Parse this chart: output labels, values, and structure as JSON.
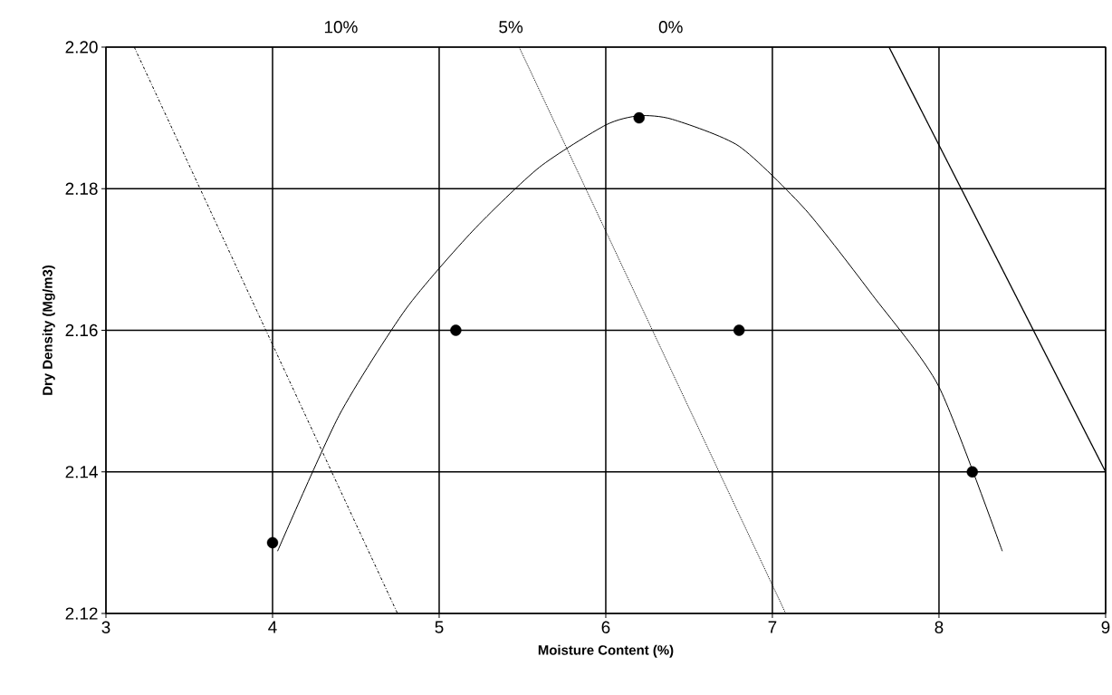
{
  "chart_data": {
    "type": "scatter",
    "xlabel": "Moisture Content (%)",
    "ylabel": "Dry Density (Mg/m3)",
    "xlim": [
      3,
      9
    ],
    "ylim": [
      2.12,
      2.2
    ],
    "xticks": [
      3,
      4,
      5,
      6,
      7,
      8,
      9
    ],
    "yticks": [
      {
        "value": 2.12,
        "label": "2.12"
      },
      {
        "value": 2.14,
        "label": "2.14"
      },
      {
        "value": 2.16,
        "label": "2.16"
      },
      {
        "value": 2.18,
        "label": "2.18"
      },
      {
        "value": 2.2,
        "label": "2.20"
      }
    ],
    "grid": true,
    "annotations": [
      "10%",
      "5%",
      "0%"
    ],
    "series": [
      {
        "color": "#000000",
        "marker": "circle",
        "x": [
          4,
          5.1,
          6.2,
          6.8,
          8.2
        ],
        "values": [
          2.13,
          2.16,
          2.19,
          2.16,
          2.14
        ]
      },
      {
        "type": "line",
        "color": "#000000",
        "marker": "none",
        "line_style": "solid",
        "x": [
          4.03,
          4.4,
          4.8,
          5.2,
          5.6,
          6.0,
          6.2,
          6.4,
          6.8,
          7.2,
          7.6,
          8.0,
          8.38
        ],
        "values": [
          2.1288,
          2.148,
          2.163,
          2.174,
          2.183,
          2.189,
          2.1903,
          2.1898,
          2.186,
          2.177,
          2.165,
          2.152,
          2.1288
        ]
      },
      {
        "type": "line",
        "color": "#000000",
        "marker": "none",
        "line_style": "dashed",
        "x": [
          3.17,
          4.75
        ],
        "values": [
          2.2,
          2.12
        ]
      },
      {
        "type": "line",
        "color": "#000000",
        "marker": "none",
        "line_style": "dotted",
        "x": [
          5.48,
          7.08
        ],
        "values": [
          2.2,
          2.12
        ]
      },
      {
        "type": "line",
        "color": "#000000",
        "marker": "none",
        "line_style": "solid",
        "x": [
          7.7,
          9
        ],
        "values": [
          2.2,
          2.14
        ]
      }
    ]
  }
}
